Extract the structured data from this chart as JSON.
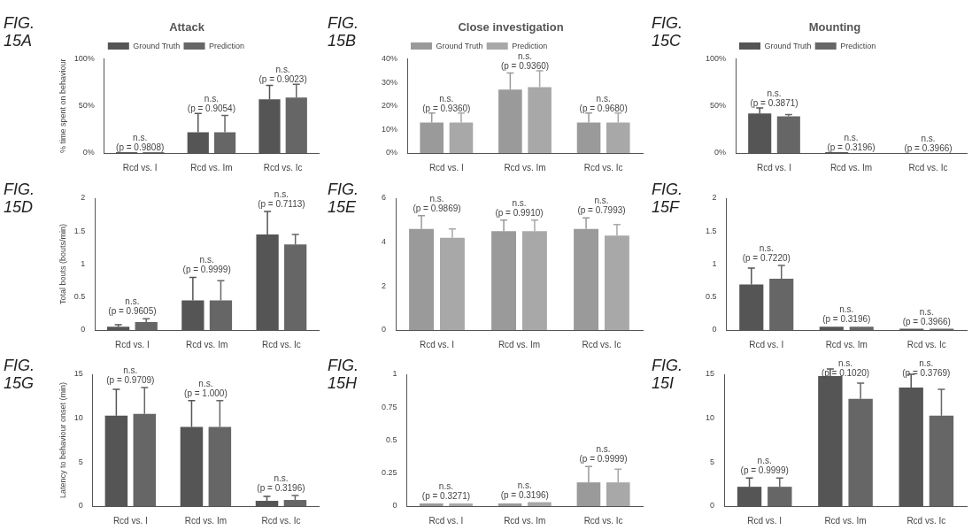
{
  "chart_data": [
    {
      "type": "bar",
      "title": "Attack",
      "subtitle": "FIG. 15A",
      "ylabel": "% time spent on behaviour",
      "categories": [
        "Rcd vs. I",
        "Rcd vs. Im",
        "Rcd vs. Ic"
      ],
      "legend": "top left",
      "ylim": [
        0,
        100
      ],
      "yticks": [
        {
          "value": 0,
          "label": "0%"
        },
        {
          "value": 50,
          "label": "50%"
        },
        {
          "value": 100,
          "label": "100%"
        }
      ],
      "series": [
        {
          "name": "Ground Truth",
          "color": "#555555",
          "values": [
            1,
            22,
            57
          ],
          "errors": [
            null,
            20,
            15
          ]
        },
        {
          "name": "Prediction",
          "color": "#666666",
          "values": [
            1,
            22,
            59
          ],
          "errors": [
            null,
            18,
            14
          ]
        }
      ],
      "annotations": [
        "n.s.\n(p = 0.9808)",
        "n.s.\n(p = 0.9054)",
        "n.s.\n(p = 0.9023)"
      ]
    },
    {
      "type": "bar",
      "title": "Close investigation",
      "subtitle": "FIG. 15B",
      "categories": [
        "Rcd vs. I",
        "Rcd vs. Im",
        "Rcd vs. Ic"
      ],
      "legend": "top left",
      "ylim": [
        0,
        40
      ],
      "yticks": [
        {
          "value": 0,
          "label": "0%"
        },
        {
          "value": 10,
          "label": "10%"
        },
        {
          "value": 20,
          "label": "20%"
        },
        {
          "value": 30,
          "label": "30%"
        },
        {
          "value": 40,
          "label": "40%"
        }
      ],
      "series": [
        {
          "name": "Ground Truth",
          "color": "#9a9a9a",
          "values": [
            13,
            27,
            13
          ],
          "errors": [
            4,
            7,
            4
          ]
        },
        {
          "name": "Prediction",
          "color": "#a8a8a8",
          "values": [
            13,
            28,
            13
          ],
          "errors": [
            4,
            7,
            4
          ]
        }
      ],
      "annotations": [
        "n.s.\n(p = 0.9360)",
        "n.s.\n(p = 0.9360)",
        "n.s.\n(p = 0.9680)"
      ]
    },
    {
      "type": "bar",
      "title": "Mounting",
      "subtitle": "FIG. 15C",
      "categories": [
        "Rcd vs. I",
        "Rcd vs. Im",
        "Rcd vs. Ic"
      ],
      "legend": "top left",
      "ylim": [
        0,
        100
      ],
      "yticks": [
        {
          "value": 0,
          "label": "0%"
        },
        {
          "value": 50,
          "label": "50%"
        },
        {
          "value": 100,
          "label": "100%"
        }
      ],
      "series": [
        {
          "name": "Ground Truth",
          "color": "#555555",
          "values": [
            42,
            1,
            0
          ],
          "errors": [
            6,
            null,
            null
          ]
        },
        {
          "name": "Prediction",
          "color": "#666666",
          "values": [
            39,
            0,
            0
          ],
          "errors": [
            2,
            null,
            null
          ]
        }
      ],
      "annotations": [
        "n.s.\n(p = 0.3871)",
        "n.s.\n(p = 0.3196)",
        "n.s.\n(p = 0.3966)"
      ]
    },
    {
      "type": "bar",
      "subtitle": "FIG. 15D",
      "ylabel": "Total bouts (bouts/min)",
      "categories": [
        "Rcd vs. I",
        "Rcd vs. Im",
        "Rcd vs. Ic"
      ],
      "ylim": [
        0,
        2
      ],
      "yticks": [
        0,
        0.5,
        1,
        1.5,
        2
      ],
      "series": [
        {
          "color": "#555555",
          "values": [
            0.05,
            0.45,
            1.45
          ],
          "errors": [
            0.03,
            0.35,
            0.35
          ]
        },
        {
          "color": "#666666",
          "values": [
            0.12,
            0.45,
            1.3
          ],
          "errors": [
            0.05,
            0.3,
            0.15
          ]
        }
      ],
      "annotations": [
        "n.s.\n(p = 0.9605)",
        "n.s.\n(p = 0.9999)",
        "n.s.\n(p = 0.7113)"
      ]
    },
    {
      "type": "bar",
      "subtitle": "FIG. 15E",
      "categories": [
        "Rcd vs. I",
        "Rcd vs. Im",
        "Rcd vs. Ic"
      ],
      "ylim": [
        0,
        6
      ],
      "yticks": [
        0,
        2,
        4,
        6
      ],
      "series": [
        {
          "color": "#9a9a9a",
          "values": [
            4.6,
            4.5,
            4.6
          ],
          "errors": [
            0.6,
            0.5,
            0.5
          ]
        },
        {
          "color": "#a8a8a8",
          "values": [
            4.2,
            4.5,
            4.3
          ],
          "errors": [
            0.4,
            0.5,
            0.5
          ]
        }
      ],
      "annotations": [
        "n.s.\n(p = 0.9869)",
        "n.s.\n(p = 0.9910)",
        "n.s.\n(p = 0.7993)"
      ]
    },
    {
      "type": "bar",
      "subtitle": "FIG. 15F",
      "categories": [
        "Rcd vs. I",
        "Rcd vs. Im",
        "Rcd vs. Ic"
      ],
      "ylim": [
        0,
        2
      ],
      "yticks": [
        0,
        0.5,
        1,
        1.5,
        2
      ],
      "series": [
        {
          "color": "#555555",
          "values": [
            0.69,
            0.05,
            0.02
          ],
          "errors": [
            0.25,
            null,
            null
          ]
        },
        {
          "color": "#666666",
          "values": [
            0.78,
            0.05,
            0.02
          ],
          "errors": [
            0.2,
            null,
            null
          ]
        }
      ],
      "annotations": [
        "n.s.\n(p = 0.7220)",
        "n.s.\n(p = 0.3196)",
        "n.s.\n(p = 0.3966)"
      ]
    },
    {
      "type": "bar",
      "subtitle": "FIG. 15G",
      "ylabel": "Latency to behaviour onset (min)",
      "categories": [
        "Rcd vs. I",
        "Rcd vs. Im",
        "Rcd vs. Ic"
      ],
      "ylim": [
        0,
        15
      ],
      "yticks": [
        0,
        5,
        10,
        15
      ],
      "series": [
        {
          "color": "#555555",
          "values": [
            10.3,
            9,
            0.6
          ],
          "errors": [
            3,
            3,
            0.5
          ]
        },
        {
          "color": "#666666",
          "values": [
            10.5,
            9,
            0.7
          ],
          "errors": [
            3,
            3,
            0.5
          ]
        }
      ],
      "annotations": [
        "n.s.\n(p = 0.9709)",
        "n.s.\n(p = 1.000)",
        "n.s.\n(p = 0.3196)"
      ]
    },
    {
      "type": "bar",
      "subtitle": "FIG. 15H",
      "categories": [
        "Rcd vs. I",
        "Rcd vs. Im",
        "Rcd vs. Ic"
      ],
      "ylim": [
        0,
        1
      ],
      "yticks": [
        0,
        0.25,
        0.5,
        0.75,
        1
      ],
      "series": [
        {
          "color": "#9a9a9a",
          "values": [
            0.02,
            0.02,
            0.18
          ],
          "errors": [
            null,
            null,
            0.12
          ]
        },
        {
          "color": "#a8a8a8",
          "values": [
            0.02,
            0.03,
            0.18
          ],
          "errors": [
            null,
            null,
            0.1
          ]
        }
      ],
      "annotations": [
        "n.s.\n(p = 0.3271)",
        "n.s.\n(p = 0.3196)",
        "n.s.\n(p = 0.9999)"
      ]
    },
    {
      "type": "bar",
      "subtitle": "FIG. 15I",
      "categories": [
        "Rcd vs. I",
        "Rcd vs. Im",
        "Rcd vs. Ic"
      ],
      "ylim": [
        0,
        15
      ],
      "yticks": [
        0,
        5,
        10,
        15
      ],
      "series": [
        {
          "color": "#555555",
          "values": [
            2.2,
            14.8,
            13.5
          ],
          "errors": [
            1,
            0.8,
            1.5
          ]
        },
        {
          "color": "#666666",
          "values": [
            2.2,
            12.2,
            10.3
          ],
          "errors": [
            1,
            1.8,
            3
          ]
        }
      ],
      "annotations": [
        "n.s.\n(p = 0.9999)",
        "n.s.\n(p = 0.1020)",
        "n.s.\n(p = 0.3769)"
      ]
    }
  ]
}
